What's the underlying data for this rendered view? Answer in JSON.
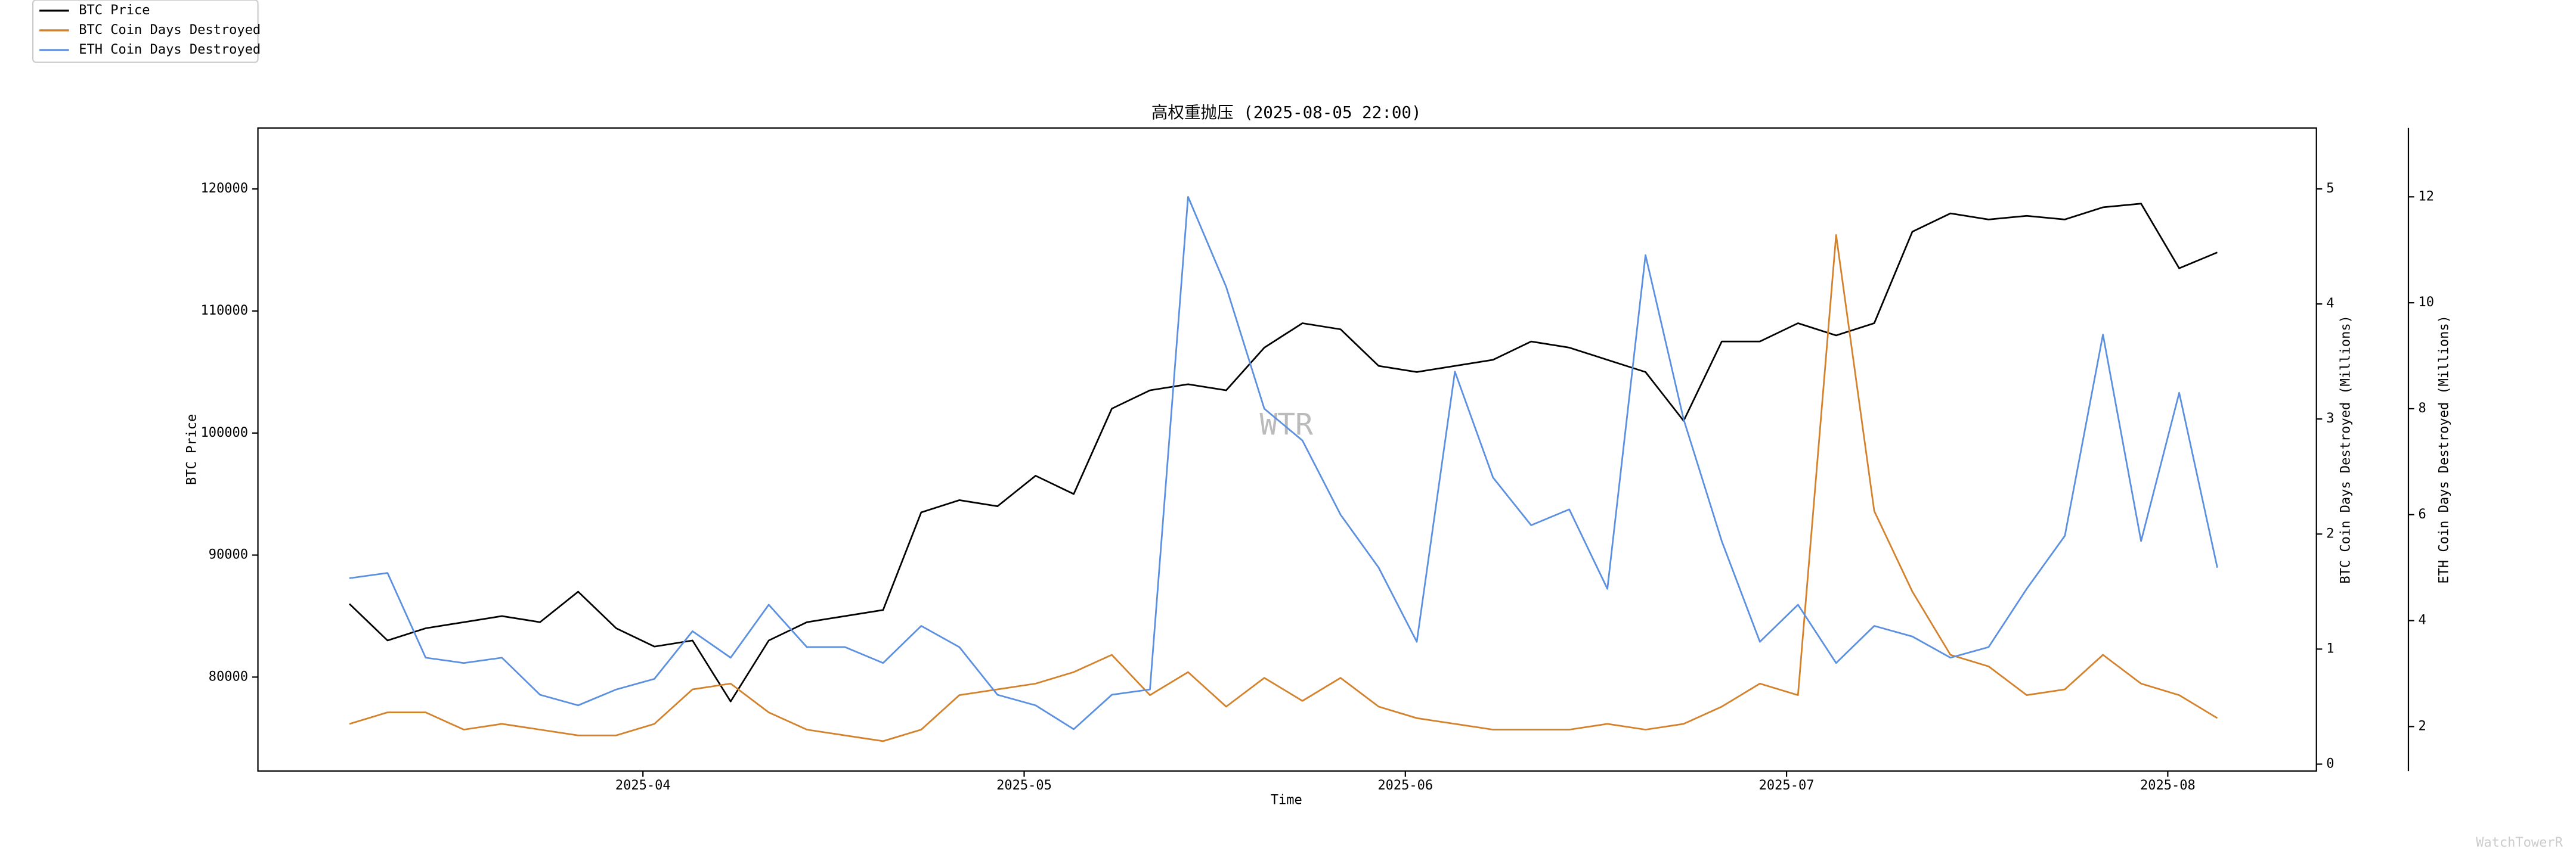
{
  "chart_data": {
    "type": "line",
    "title": "高权重抛压 (2025-08-05 22:00)",
    "xlabel": "Time",
    "ylabel": "BTC Price",
    "y2label": "BTC Coin Days Destroyed (Millions)",
    "y3label": "ETH Coin Days Destroyed (Millions)",
    "watermark": "WTR",
    "credit": "WatchTowerR",
    "legend": "upper left",
    "x": [
      3.23,
      3.33,
      3.43,
      3.53,
      3.63,
      3.73,
      3.83,
      3.93,
      4.03,
      4.13,
      4.23,
      4.33,
      4.43,
      4.53,
      4.63,
      4.73,
      4.83,
      4.93,
      5.03,
      5.13,
      5.23,
      5.33,
      5.43,
      5.53,
      5.63,
      5.73,
      5.83,
      5.93,
      6.03,
      6.13,
      6.23,
      6.33,
      6.43,
      6.53,
      6.63,
      6.73,
      6.83,
      6.93,
      7.03,
      7.13,
      7.23,
      7.33,
      7.43,
      7.53,
      7.63,
      7.73,
      7.83,
      7.93,
      8.03,
      8.13
    ],
    "xlim": [
      2.99,
      8.39
    ],
    "xticks": [
      {
        "value": 4,
        "label": "2025-04"
      },
      {
        "value": 5,
        "label": "2025-05"
      },
      {
        "value": 6,
        "label": "2025-06"
      },
      {
        "value": 7,
        "label": "2025-07"
      },
      {
        "value": 8,
        "label": "2025-08"
      }
    ],
    "ylim": [
      72300,
      125000
    ],
    "yticks": [
      80000,
      90000,
      100000,
      110000,
      120000
    ],
    "y2lim": [
      -0.06,
      5.53
    ],
    "y2ticks": [
      0,
      1,
      2,
      3,
      4,
      5
    ],
    "y3lim": [
      1.16,
      13.3
    ],
    "y3ticks": [
      2,
      4,
      6,
      8,
      10,
      12
    ],
    "series": [
      {
        "name": "BTC Price",
        "color": "#000000",
        "axis": "y",
        "values": [
          86000,
          83000,
          84000,
          84500,
          85000,
          84500,
          87000,
          84000,
          82500,
          83000,
          78000,
          83000,
          84500,
          85000,
          85500,
          93500,
          94500,
          94000,
          96500,
          95000,
          102000,
          103500,
          104000,
          103500,
          107000,
          109000,
          108500,
          105500,
          105000,
          105500,
          106000,
          107500,
          107000,
          106000,
          105000,
          101000,
          107500,
          107500,
          109000,
          108000,
          109000,
          116500,
          118000,
          117500,
          117800,
          117500,
          118500,
          118800,
          113500,
          114800
        ]
      },
      {
        "name": "BTC Coin Days Destroyed",
        "color": "#d4812b",
        "axis": "y2",
        "values": [
          0.35,
          0.45,
          0.45,
          0.3,
          0.35,
          0.3,
          0.25,
          0.25,
          0.35,
          0.65,
          0.7,
          0.45,
          0.3,
          0.25,
          0.2,
          0.3,
          0.6,
          0.65,
          0.7,
          0.8,
          0.95,
          0.6,
          0.8,
          0.5,
          0.75,
          0.55,
          0.75,
          0.5,
          0.4,
          0.35,
          0.3,
          0.3,
          0.3,
          0.35,
          0.3,
          0.35,
          0.5,
          0.7,
          0.6,
          4.6,
          2.2,
          1.5,
          0.95,
          0.85,
          0.6,
          0.65,
          0.95,
          0.7,
          0.6,
          0.4
        ]
      },
      {
        "name": "ETH Coin Days Destroyed",
        "color": "#5b8fe0",
        "axis": "y3",
        "values": [
          4.8,
          4.9,
          3.3,
          3.2,
          3.3,
          2.6,
          2.4,
          2.7,
          2.9,
          3.8,
          3.3,
          4.3,
          3.5,
          3.5,
          3.2,
          3.9,
          3.5,
          2.6,
          2.4,
          1.95,
          2.6,
          2.7,
          12.0,
          10.3,
          8.0,
          7.4,
          6.0,
          5.0,
          3.6,
          8.7,
          6.7,
          5.8,
          6.1,
          4.6,
          10.9,
          7.8,
          5.5,
          3.6,
          4.3,
          3.2,
          3.9,
          3.7,
          3.3,
          3.5,
          4.6,
          5.6,
          9.4,
          5.5,
          8.3,
          5.0
        ]
      }
    ]
  }
}
